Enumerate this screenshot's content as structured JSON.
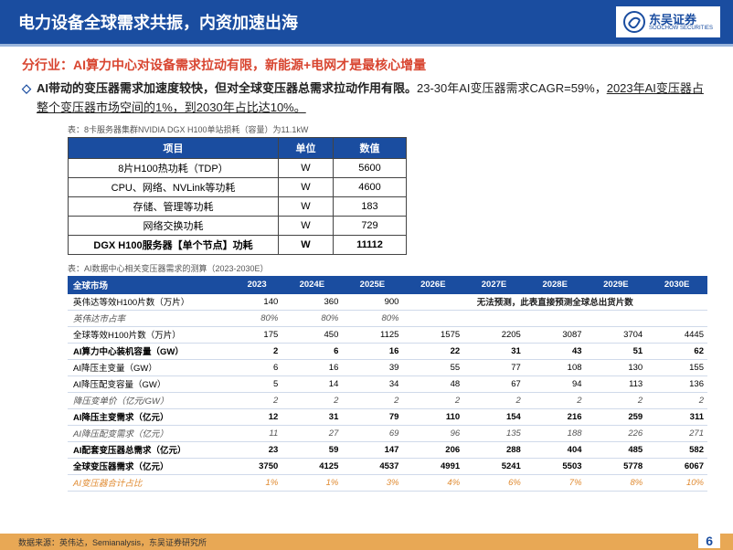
{
  "header": {
    "title": "电力设备全球需求共振，内资加速出海",
    "logo_cn": "东吴证券",
    "logo_en": "SOOCHOW SECURITIES",
    "logo_color": "#1a4da0"
  },
  "subtitle": "分行业：AI算力中心对设备需求拉动有限，新能源+电网才是最核心增量",
  "desc_bold": "AI带动的变压器需求加速度较快，但对全球变压器总需求拉动作用有限。",
  "desc_plain": "23-30年AI变压器需求CAGR=59%，",
  "desc_underline": "2023年AI变压器占整个变压器市场空间的1%，到2030年占比达10%。",
  "table1": {
    "caption": "表：8卡服务器集群NVIDIA DGX H100单站损耗（容量）为11.1kW",
    "headers": [
      "项目",
      "单位",
      "数值"
    ],
    "rows": [
      {
        "item": "8片H100热功耗（TDP）",
        "unit": "W",
        "val": "5600",
        "bold": false
      },
      {
        "item": "CPU、网络、NVLink等功耗",
        "unit": "W",
        "val": "4600",
        "bold": false
      },
      {
        "item": "存储、管理等功耗",
        "unit": "W",
        "val": "183",
        "bold": false
      },
      {
        "item": "网络交换功耗",
        "unit": "W",
        "val": "729",
        "bold": false
      },
      {
        "item": "DGX H100服务器【单个节点】功耗",
        "unit": "W",
        "val": "11112",
        "bold": true
      }
    ]
  },
  "table2": {
    "caption": "表：AI数据中心相关变压器需求的测算（2023-2030E）",
    "headers": [
      "全球市场",
      "2023",
      "2024E",
      "2025E",
      "2026E",
      "2027E",
      "2028E",
      "2029E",
      "2030E"
    ],
    "note": "无法预测，此表直接预测全球总出货片数",
    "rows": [
      {
        "label": "英伟达等效H100片数（万片）",
        "vals": [
          "140",
          "360",
          "900"
        ],
        "note_span": 5,
        "bold": false,
        "italic": false
      },
      {
        "label": "英伟达市占率",
        "vals": [
          "80%",
          "80%",
          "80%"
        ],
        "note_span": 5,
        "bold": false,
        "italic": true
      },
      {
        "label": "全球等效H100片数（万片）",
        "vals": [
          "175",
          "450",
          "1125",
          "1575",
          "2205",
          "3087",
          "3704",
          "4445"
        ],
        "bold": false,
        "italic": false
      },
      {
        "label": "AI算力中心装机容量（GW）",
        "vals": [
          "2",
          "6",
          "16",
          "22",
          "31",
          "43",
          "51",
          "62"
        ],
        "bold": true,
        "italic": false
      },
      {
        "label": "AI降压主变量（GW）",
        "vals": [
          "6",
          "16",
          "39",
          "55",
          "77",
          "108",
          "130",
          "155"
        ],
        "bold": false,
        "italic": false
      },
      {
        "label": "AI降压配变容量（GW）",
        "vals": [
          "5",
          "14",
          "34",
          "48",
          "67",
          "94",
          "113",
          "136"
        ],
        "bold": false,
        "italic": false
      },
      {
        "label": "降压变单价（亿元/GW）",
        "vals": [
          "2",
          "2",
          "2",
          "2",
          "2",
          "2",
          "2",
          "2"
        ],
        "bold": false,
        "italic": true
      },
      {
        "label": "AI降压主变需求（亿元）",
        "vals": [
          "12",
          "31",
          "79",
          "110",
          "154",
          "216",
          "259",
          "311"
        ],
        "bold": true,
        "italic": false
      },
      {
        "label": "AI降压配变需求（亿元）",
        "vals": [
          "11",
          "27",
          "69",
          "96",
          "135",
          "188",
          "226",
          "271"
        ],
        "bold": false,
        "italic": true
      },
      {
        "label": "AI配套变压器总需求（亿元）",
        "vals": [
          "23",
          "59",
          "147",
          "206",
          "288",
          "404",
          "485",
          "582"
        ],
        "bold": true,
        "italic": false
      },
      {
        "label": "全球变压器需求（亿元）",
        "vals": [
          "3750",
          "4125",
          "4537",
          "4991",
          "5241",
          "5503",
          "5778",
          "6067"
        ],
        "bold": true,
        "italic": false
      }
    ],
    "ratio_row": {
      "label": "AI变压器合计占比",
      "vals": [
        "1%",
        "1%",
        "3%",
        "4%",
        "6%",
        "7%",
        "8%",
        "10%"
      ]
    }
  },
  "footer": {
    "source": "数据来源：英伟达，Semianalysis，东吴证券研究所",
    "page": "6"
  },
  "colors": {
    "primary": "#1a4da0",
    "accent_red": "#d84530",
    "footer_bar": "#e8a855"
  }
}
